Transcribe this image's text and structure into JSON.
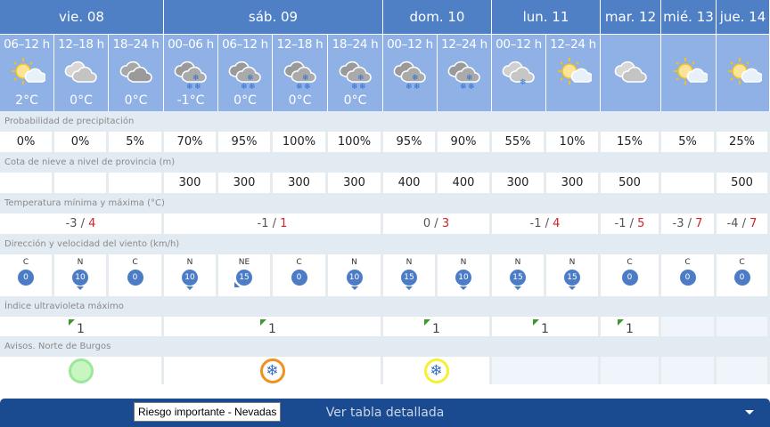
{
  "days": [
    {
      "label": "vie. 08",
      "span": 3
    },
    {
      "label": "sáb. 09",
      "span": 4
    },
    {
      "label": "dom. 10",
      "span": 2
    },
    {
      "label": "lun. 11",
      "span": 2
    },
    {
      "label": "mar. 12",
      "span": 1
    },
    {
      "label": "mié. 13",
      "span": 1
    },
    {
      "label": "jue. 14",
      "span": 1
    }
  ],
  "periods": [
    {
      "hours": "06–12 h",
      "icon": "sun-cloud",
      "temp": "2°C"
    },
    {
      "hours": "12–18 h",
      "icon": "cloudy",
      "temp": "0°C"
    },
    {
      "hours": "18–24 h",
      "icon": "overcast",
      "temp": "0°C"
    },
    {
      "hours": "00–06 h",
      "icon": "snow-cloud",
      "temp": "-1°C"
    },
    {
      "hours": "06–12 h",
      "icon": "snow-cloud",
      "temp": "0°C"
    },
    {
      "hours": "12–18 h",
      "icon": "snow-cloud",
      "temp": "0°C"
    },
    {
      "hours": "18–24 h",
      "icon": "snow-cloud",
      "temp": "0°C"
    },
    {
      "hours": "00–12 h",
      "icon": "snow-cloud",
      "temp": ""
    },
    {
      "hours": "12–24 h",
      "icon": "snow-cloud",
      "temp": ""
    },
    {
      "hours": "00–12 h",
      "icon": "light-snow-cloud",
      "temp": ""
    },
    {
      "hours": "12–24 h",
      "icon": "sun-cloud",
      "temp": ""
    },
    {
      "hours": "",
      "icon": "cloudy",
      "temp": ""
    },
    {
      "hours": "",
      "icon": "sun-cloud",
      "temp": ""
    },
    {
      "hours": "",
      "icon": "sun-cloud",
      "temp": ""
    }
  ],
  "precip": {
    "label": "Probabilidad de precipitación",
    "values": [
      "0%",
      "0%",
      "5%",
      "70%",
      "95%",
      "100%",
      "100%",
      "95%",
      "90%",
      "55%",
      "10%",
      "15%",
      "5%",
      "25%"
    ]
  },
  "snow": {
    "label": "Cota de nieve a nivel de provincia (m)",
    "values": [
      "",
      "",
      "",
      "300",
      "300",
      "300",
      "300",
      "400",
      "400",
      "300",
      "300",
      "500",
      "",
      "500"
    ]
  },
  "temps": {
    "label": "Temperatura mínima y máxima (°C)",
    "values": [
      {
        "min": "-3",
        "max": "4"
      },
      {
        "min": "-1",
        "max": "1"
      },
      {
        "min": "0",
        "max": "3"
      },
      {
        "min": "-1",
        "max": "4"
      },
      {
        "min": "-1",
        "max": "5"
      },
      {
        "min": "-3",
        "max": "7"
      },
      {
        "min": "-4",
        "max": "7"
      }
    ],
    "sep": " / "
  },
  "wind": {
    "label": "Dirección y velocidad del viento (km/h)",
    "values": [
      {
        "dir": "C",
        "speed": "0"
      },
      {
        "dir": "N",
        "speed": "10"
      },
      {
        "dir": "C",
        "speed": "0"
      },
      {
        "dir": "N",
        "speed": "10"
      },
      {
        "dir": "NE",
        "speed": "15"
      },
      {
        "dir": "C",
        "speed": "0"
      },
      {
        "dir": "N",
        "speed": "10"
      },
      {
        "dir": "N",
        "speed": "15"
      },
      {
        "dir": "N",
        "speed": "10"
      },
      {
        "dir": "N",
        "speed": "15"
      },
      {
        "dir": "N",
        "speed": "15"
      },
      {
        "dir": "C",
        "speed": "0"
      },
      {
        "dir": "C",
        "speed": "0"
      },
      {
        "dir": "C",
        "speed": "0"
      }
    ]
  },
  "uv": {
    "label": "Índice ultravioleta máximo",
    "values": [
      "1",
      "1",
      "1",
      "1",
      "1",
      "",
      ""
    ],
    "flag_color": "#3c9a2c"
  },
  "avisos": {
    "label": "Avisos. Norte de Burgos",
    "values": [
      {
        "level": "green",
        "color": "#9be89b",
        "icon": ""
      },
      {
        "level": "orange",
        "color": "#f0901e",
        "icon": "snowflake"
      },
      {
        "level": "yellow",
        "color": "#f5f032",
        "icon": "snowflake"
      },
      {
        "level": "none"
      },
      {
        "level": "none"
      },
      {
        "level": "none"
      },
      {
        "level": "none"
      }
    ]
  },
  "button": {
    "label": "Ver tabla detallada"
  },
  "tooltip": {
    "text": "Riesgo importante - Nevadas"
  },
  "colors": {
    "header": "#4f7fc5",
    "subheader": "#8fb1e6",
    "button": "#1a4a8f",
    "max_temp": "#d0232a",
    "wind_badge": "#4d7cc6"
  }
}
